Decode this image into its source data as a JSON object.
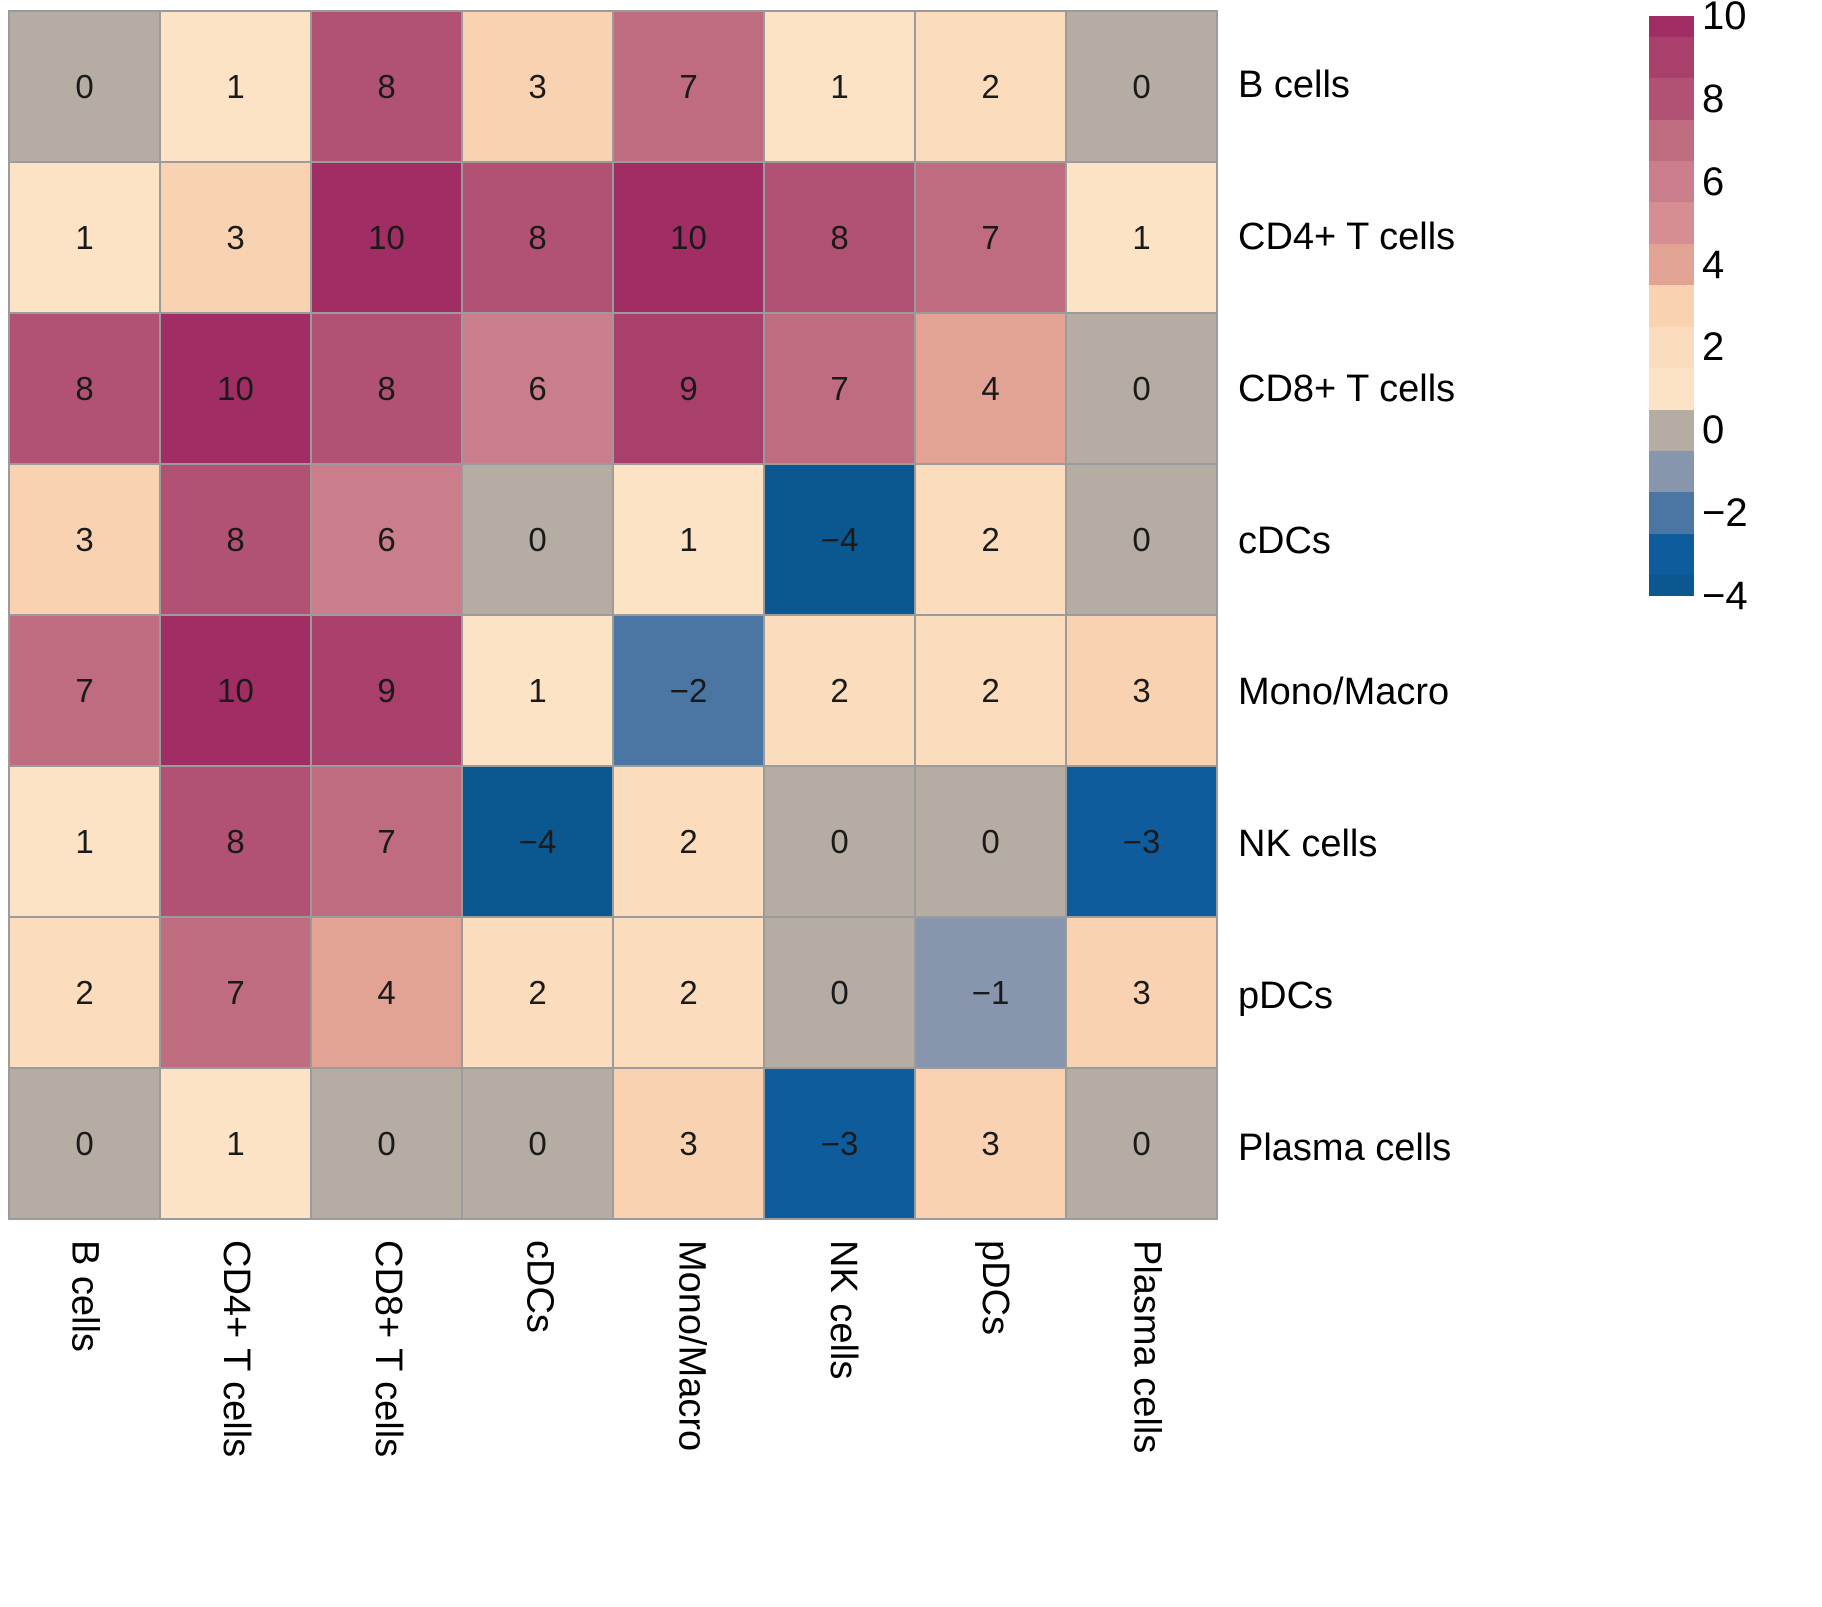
{
  "figure": {
    "background": "#ffffff",
    "grid_line_color": "#9b9b9b"
  },
  "chart_data": {
    "type": "heatmap",
    "rows": [
      "B cells",
      "CD4+ T cells",
      "CD8+ T cells",
      "cDCs",
      "Mono/Macro",
      "NK cells",
      "pDCs",
      "Plasma cells"
    ],
    "columns": [
      "B cells",
      "CD4+ T cells",
      "CD8+ T cells",
      "cDCs",
      "Mono/Macro",
      "NK cells",
      "pDCs",
      "Plasma cells"
    ],
    "values": [
      [
        0,
        1,
        8,
        3,
        7,
        1,
        2,
        0
      ],
      [
        1,
        3,
        10,
        8,
        10,
        8,
        7,
        1
      ],
      [
        8,
        10,
        8,
        6,
        9,
        7,
        4,
        0
      ],
      [
        3,
        8,
        6,
        0,
        1,
        -4,
        2,
        0
      ],
      [
        7,
        10,
        9,
        1,
        -2,
        2,
        2,
        3
      ],
      [
        1,
        8,
        7,
        -4,
        2,
        0,
        0,
        -3
      ],
      [
        2,
        7,
        4,
        2,
        2,
        0,
        -1,
        3
      ],
      [
        0,
        1,
        0,
        0,
        3,
        -3,
        3,
        0
      ]
    ],
    "value_range": [
      -4,
      10
    ],
    "legend_ticks": [
      10,
      8,
      6,
      4,
      2,
      0,
      -2,
      -4
    ],
    "color_map": {
      "10": "#a02d63",
      "9": "#a93f6b",
      "8": "#b15173",
      "7": "#bf6b80",
      "6": "#ca7d8a",
      "5": "#d68e92",
      "4": "#e2a294",
      "3": "#f8d2b1",
      "2": "#fbddbe",
      "1": "#fde3c5",
      "0": "#b5aca3",
      "-1": "#8795ad",
      "-2": "#4b76a3",
      "-3": "#0f5c9d",
      "-4": "#0b578f"
    },
    "colorbar_stops": [
      10,
      9,
      8,
      7,
      6,
      5,
      4,
      3,
      2,
      1,
      0,
      -1,
      -2,
      -3,
      -4
    ]
  }
}
